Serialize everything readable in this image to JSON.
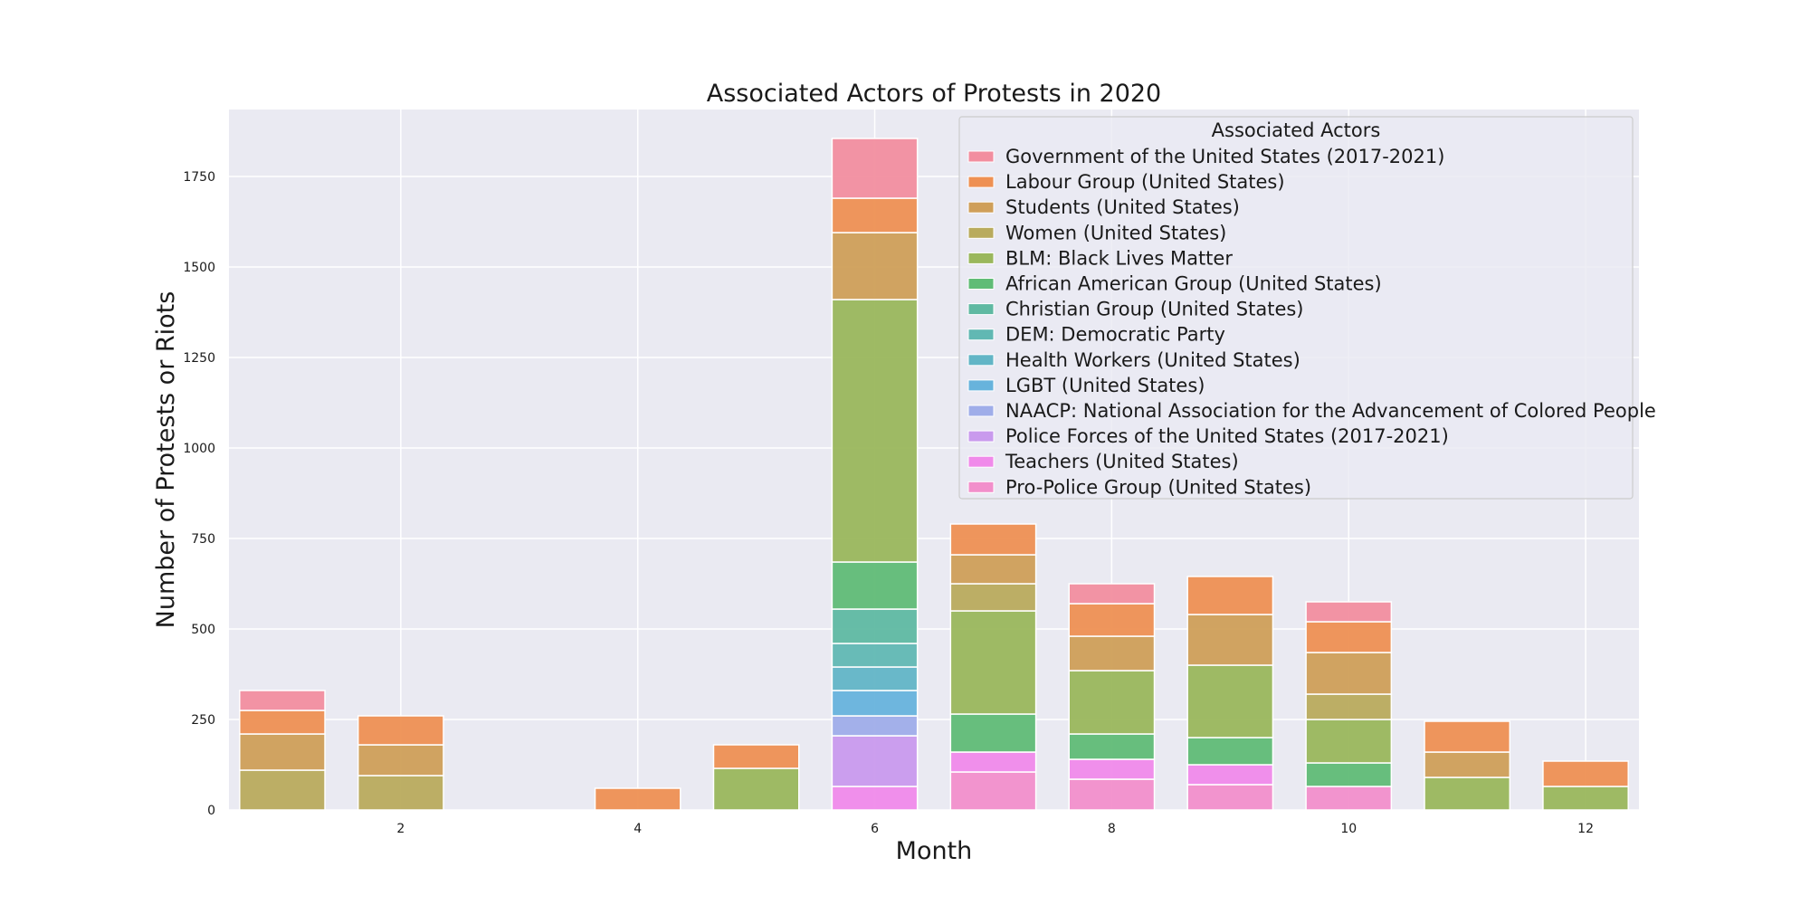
{
  "chart_data": {
    "type": "bar",
    "stacked": true,
    "title": "Associated Actors of Protests in 2020",
    "xlabel": "Month",
    "ylabel": "Number of Protests or Riots",
    "x_ticks": [
      2,
      4,
      6,
      8,
      10,
      12
    ],
    "y_ticks": [
      0,
      250,
      500,
      750,
      1000,
      1250,
      1500,
      1750
    ],
    "xlim": [
      0.55,
      12.45
    ],
    "ylim": [
      0,
      1935
    ],
    "grid": true,
    "legend": {
      "title": "Associated Actors",
      "position": "top-right"
    },
    "categories": [
      1,
      2,
      4,
      5,
      6,
      7,
      8,
      9,
      10,
      11,
      12
    ],
    "series": [
      {
        "name": "Government of the United States (2017-2021)",
        "color": "#f28e9f",
        "values": [
          55,
          0,
          0,
          0,
          165,
          0,
          55,
          0,
          55,
          0,
          0
        ]
      },
      {
        "name": "Labour Group (United States)",
        "color": "#ee9053",
        "values": [
          65,
          80,
          60,
          65,
          95,
          85,
          90,
          105,
          85,
          85,
          70
        ]
      },
      {
        "name": "Students (United States)",
        "color": "#cf9f59",
        "values": [
          100,
          85,
          0,
          0,
          185,
          80,
          95,
          140,
          115,
          70,
          0
        ]
      },
      {
        "name": "Women (United States)",
        "color": "#b9ab5d",
        "values": [
          110,
          95,
          0,
          0,
          0,
          75,
          0,
          0,
          70,
          0,
          0
        ]
      },
      {
        "name": "BLM: Black Lives Matter",
        "color": "#9ab75c",
        "values": [
          0,
          0,
          0,
          115,
          725,
          285,
          175,
          200,
          120,
          90,
          65
        ]
      },
      {
        "name": "African American Group (United States)",
        "color": "#60bc76",
        "values": [
          0,
          0,
          0,
          0,
          130,
          105,
          70,
          75,
          65,
          0,
          0
        ]
      },
      {
        "name": "Christian Group (United States)",
        "color": "#5fb9a2",
        "values": [
          0,
          0,
          0,
          0,
          95,
          0,
          0,
          0,
          0,
          0,
          0
        ]
      },
      {
        "name": "DEM: Democratic Party",
        "color": "#61b8b3",
        "values": [
          0,
          0,
          0,
          0,
          65,
          0,
          0,
          0,
          0,
          0,
          0
        ]
      },
      {
        "name": "Health Workers (United States)",
        "color": "#62b5c6",
        "values": [
          0,
          0,
          0,
          0,
          65,
          0,
          0,
          0,
          0,
          0,
          0
        ]
      },
      {
        "name": "LGBT (United States)",
        "color": "#67b3dc",
        "values": [
          0,
          0,
          0,
          0,
          70,
          0,
          0,
          0,
          0,
          0,
          0
        ]
      },
      {
        "name": "NAACP: National Association for the Advancement of Colored People",
        "color": "#9fade9",
        "values": [
          0,
          0,
          0,
          0,
          55,
          0,
          0,
          0,
          0,
          0,
          0
        ]
      },
      {
        "name": "Police Forces of the United States (2017-2021)",
        "color": "#c99aed",
        "values": [
          0,
          0,
          0,
          0,
          140,
          0,
          0,
          0,
          0,
          0,
          0
        ]
      },
      {
        "name": "Teachers (United States)",
        "color": "#f08aea",
        "values": [
          0,
          0,
          0,
          0,
          65,
          55,
          55,
          55,
          0,
          0,
          0
        ]
      },
      {
        "name": "Pro-Police Group (United States)",
        "color": "#f28fcb",
        "values": [
          0,
          0,
          0,
          0,
          0,
          105,
          85,
          70,
          65,
          0,
          0
        ]
      }
    ]
  }
}
